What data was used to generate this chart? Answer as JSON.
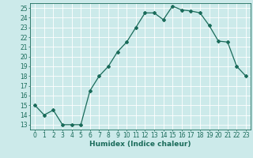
{
  "x": [
    0,
    1,
    2,
    3,
    4,
    5,
    6,
    7,
    8,
    9,
    10,
    11,
    12,
    13,
    14,
    15,
    16,
    17,
    18,
    19,
    20,
    21,
    22,
    23
  ],
  "y": [
    15.0,
    14.0,
    14.5,
    13.0,
    13.0,
    13.0,
    16.5,
    18.0,
    19.0,
    20.5,
    21.5,
    23.0,
    24.5,
    24.5,
    23.8,
    25.2,
    24.8,
    24.7,
    24.5,
    23.2,
    21.6,
    21.5,
    19.0,
    18.0
  ],
  "line_color": "#1a6b5a",
  "marker": "D",
  "markersize": 2.0,
  "linewidth": 0.9,
  "xlabel": "Humidex (Indice chaleur)",
  "ylim": [
    12.5,
    25.5
  ],
  "yticks": [
    13,
    14,
    15,
    16,
    17,
    18,
    19,
    20,
    21,
    22,
    23,
    24,
    25
  ],
  "xticks": [
    0,
    1,
    2,
    3,
    4,
    5,
    6,
    7,
    8,
    9,
    10,
    11,
    12,
    13,
    14,
    15,
    16,
    17,
    18,
    19,
    20,
    21,
    22,
    23
  ],
  "bg_color": "#cceaea",
  "grid_color": "#ffffff",
  "tick_color": "#1a6b5a",
  "xlabel_fontsize": 6.5,
  "tick_fontsize": 5.5
}
